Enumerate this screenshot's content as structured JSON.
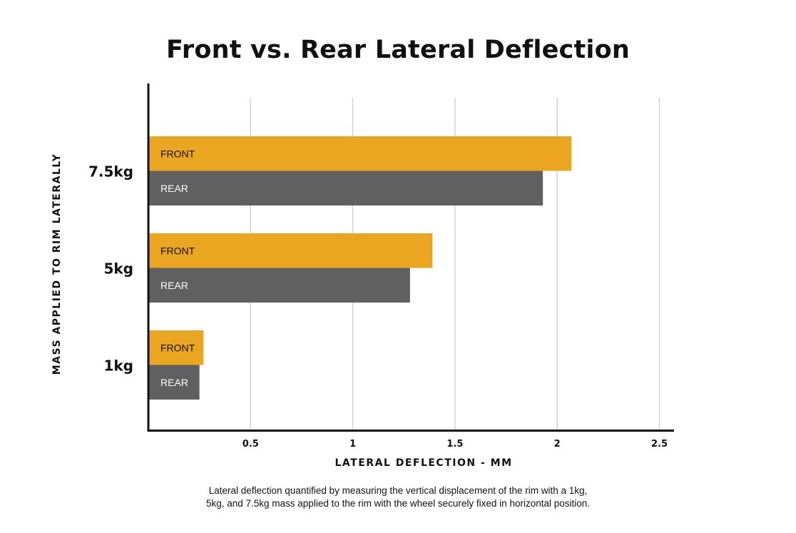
{
  "chart_data": {
    "type": "bar",
    "orientation": "horizontal",
    "title": "Front vs. Rear Lateral Deflection",
    "xlabel": "LATERAL DEFLECTION - MM",
    "ylabel": "MASS APPLIED TO RIM LATERALLY",
    "categories": [
      "7.5kg",
      "5kg",
      "1kg"
    ],
    "series": [
      {
        "name": "FRONT",
        "color": "#eaa521",
        "label_color": "#111111",
        "values": [
          2.07,
          1.39,
          0.27
        ]
      },
      {
        "name": "REAR",
        "color": "#606060",
        "label_color": "#ffffff",
        "values": [
          1.93,
          1.28,
          0.25
        ]
      }
    ],
    "xlim": [
      0,
      2.5
    ],
    "xticks": [
      "0.5",
      "1",
      "1.5",
      "2",
      "2.5"
    ],
    "grid": "vertical"
  },
  "caption": {
    "line1": "Lateral deflection quantified by measuring the vertical displacement of the rim with a 1kg,",
    "line2": "5kg, and 7.5kg mass applied to the rim with the wheel securely fixed in horizontal position."
  }
}
